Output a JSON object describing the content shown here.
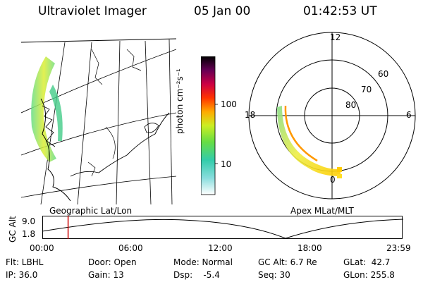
{
  "header": {
    "title": "Ultraviolet Imager",
    "date": "05 Jan 00",
    "time": "01:42:53 UT"
  },
  "colorbar": {
    "unit_label": "photon cm⁻²s⁻¹",
    "ticks": [
      "100",
      "10"
    ]
  },
  "polar_plot": {
    "lat_labels": [
      "80",
      "70",
      "60"
    ],
    "mlt_labels": [
      "12",
      "18",
      "6",
      "0"
    ]
  },
  "timeline": {
    "left_caption": "Geographic Lat/Lon",
    "right_caption": "Apex MLat/MLT",
    "axis_label": "GC Alt",
    "y_ticks": [
      "9.0",
      "1.8"
    ],
    "x_ticks": [
      "00:00",
      "06:00",
      "12:00",
      "18:00",
      "23:59"
    ],
    "current_marker_time": "01:42:53"
  },
  "info": {
    "flt": "Flt: LBHL",
    "ip": "IP: 36.0",
    "door": "Door: Open",
    "gain": "Gain: 13",
    "mode": "Mode: Normal",
    "dsp": "Dsp:    -5.4",
    "gcalt": "GC Alt: 6.7 Re",
    "seq": "Seq: 30",
    "glat": "GLat:  42.7",
    "glon": "GLon: 255.8"
  },
  "colors": {
    "marker": "#cc0000"
  }
}
